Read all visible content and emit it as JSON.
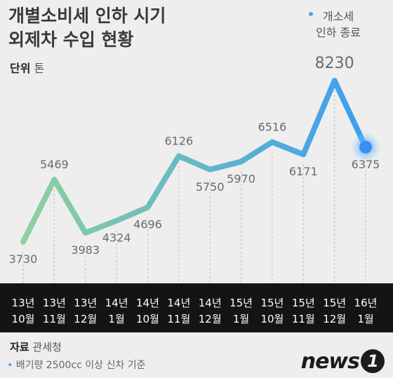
{
  "header": {
    "title_line1": "개별소비세 인하 시기",
    "title_line2": "외제차 수입 현황",
    "unit_label": "단위",
    "unit_value": "톤"
  },
  "chart_data": {
    "type": "line",
    "categories": [
      [
        "13년",
        "10월"
      ],
      [
        "13년",
        "11월"
      ],
      [
        "13년",
        "12월"
      ],
      [
        "14년",
        "1월"
      ],
      [
        "14년",
        "10월"
      ],
      [
        "14년",
        "11월"
      ],
      [
        "14년",
        "12월"
      ],
      [
        "15년",
        "1월"
      ],
      [
        "15년",
        "10월"
      ],
      [
        "15년",
        "11월"
      ],
      [
        "15년",
        "12월"
      ],
      [
        "16년",
        "1월"
      ]
    ],
    "values": [
      3730,
      5469,
      3983,
      4324,
      4696,
      6126,
      5750,
      5970,
      6516,
      6171,
      8230,
      6375
    ],
    "title": "개별소비세 인하 시기 외제차 수입 현황",
    "ylabel": "",
    "ylim": [
      3000,
      9000
    ],
    "grid": "vertical-dashed",
    "colors": {
      "start": "#8fd19e",
      "end": "#3d9ef0",
      "highlight": "#3a8ff2"
    },
    "annotation": {
      "index": 11,
      "lines": [
        "개소세",
        "인하 종료"
      ]
    }
  },
  "footer": {
    "source_label": "자료",
    "source_value": "관세청",
    "note": "배기량 2500cc 이상 신차 기준",
    "logo_text": "news",
    "logo_mark": "1"
  }
}
